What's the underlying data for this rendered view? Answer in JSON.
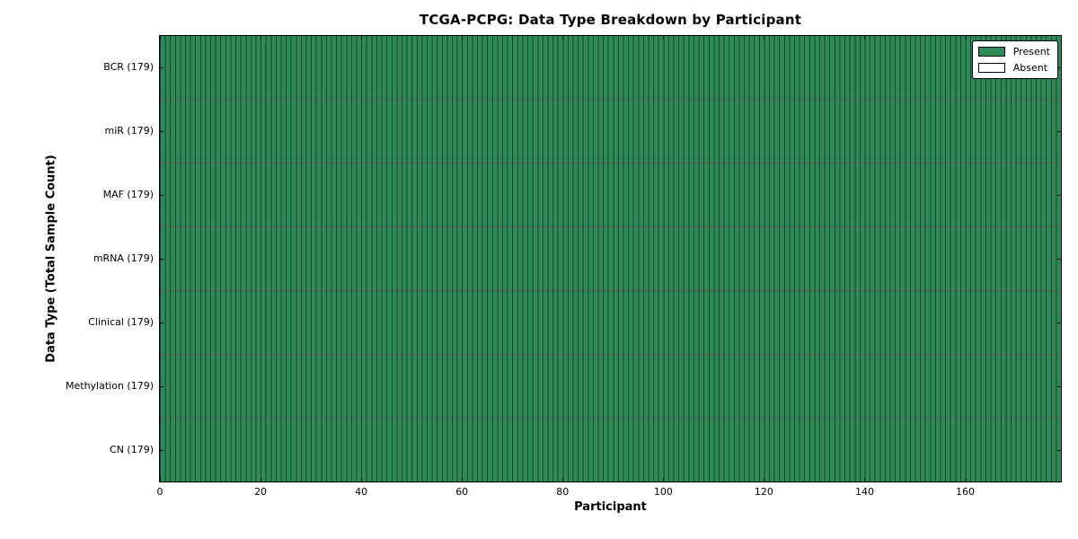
{
  "figure": {
    "title": "TCGA-PCPG: Data Type Breakdown by Participant"
  },
  "chart_data": {
    "type": "heatmap",
    "title": "TCGA-PCPG: Data Type Breakdown by Participant",
    "xlabel": "Participant",
    "ylabel": "Data Type (Total Sample Count)",
    "xlim": [
      0,
      179
    ],
    "x_ticks": [
      0,
      20,
      40,
      60,
      80,
      100,
      120,
      140,
      160
    ],
    "n_participants": 179,
    "grid": false,
    "rows": [
      {
        "label": "BCR (179)",
        "data_type": "BCR",
        "total_sample_count": 179,
        "present_count": 179,
        "absent_count": 0
      },
      {
        "label": "miR (179)",
        "data_type": "miR",
        "total_sample_count": 179,
        "present_count": 179,
        "absent_count": 0
      },
      {
        "label": "MAF (179)",
        "data_type": "MAF",
        "total_sample_count": 179,
        "present_count": 179,
        "absent_count": 0
      },
      {
        "label": "mRNA (179)",
        "data_type": "mRNA",
        "total_sample_count": 179,
        "present_count": 179,
        "absent_count": 0
      },
      {
        "label": "Clinical (179)",
        "data_type": "Clinical",
        "total_sample_count": 179,
        "present_count": 179,
        "absent_count": 0
      },
      {
        "label": "Methylation (179)",
        "data_type": "Methylation",
        "total_sample_count": 179,
        "present_count": 179,
        "absent_count": 0
      },
      {
        "label": "CN (179)",
        "data_type": "CN",
        "total_sample_count": 179,
        "present_count": 179,
        "absent_count": 0
      }
    ],
    "legend": {
      "position": "upper-right",
      "entries": [
        {
          "label": "Present",
          "color": "#2e8b57"
        },
        {
          "label": "Absent",
          "color": "#ffffff"
        }
      ]
    },
    "colors": {
      "present": "#2e8b57",
      "absent": "#ffffff",
      "bar_edge": "#000000",
      "axis": "#000000"
    }
  }
}
